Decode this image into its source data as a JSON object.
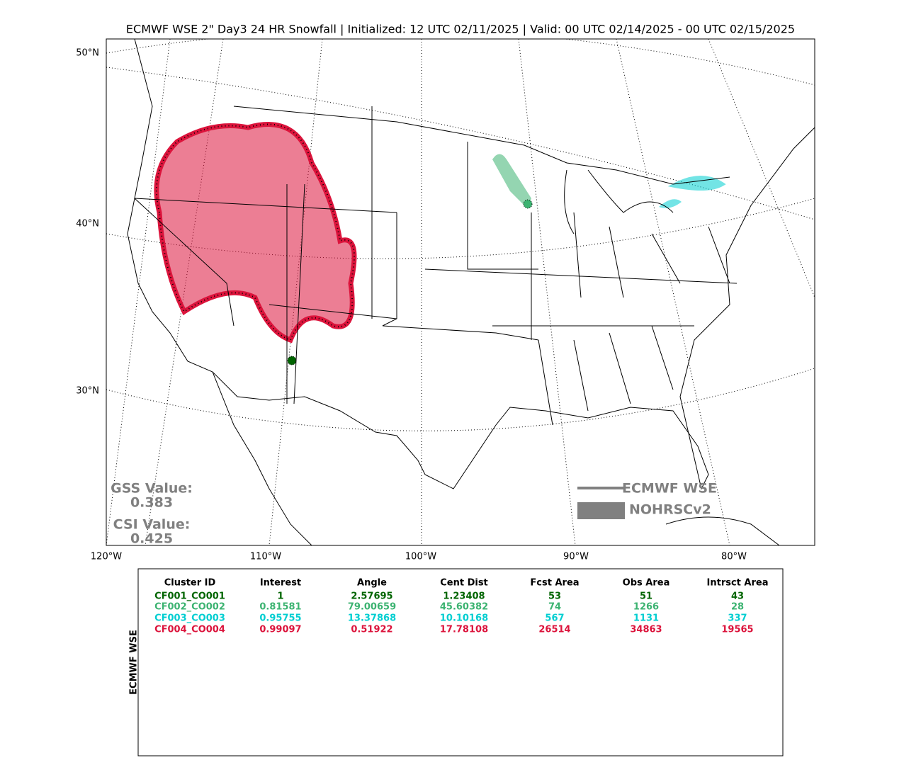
{
  "header": {
    "title": "ECMWF WSE 2\" Day3 24 HR Snowfall | Initialized: 12 UTC 02/11/2025 | Valid: 00 UTC 02/14/2025 - 00 UTC 02/15/2025"
  },
  "map": {
    "lat_labels": [
      "50°N",
      "40°N",
      "30°N"
    ],
    "lon_labels": [
      "120°W",
      "110°W",
      "100°W",
      "90°W",
      "80°W"
    ],
    "scores": {
      "gss_label": "GSS Value:",
      "gss_value": "0.383",
      "csi_label": "CSI Value:",
      "csi_value": "0.425"
    },
    "legend": {
      "forecast": "ECMWF WSE",
      "observed": "NOHRSCv2"
    }
  },
  "table": {
    "side_label": "ECMWF WSE",
    "columns": [
      "Cluster ID",
      "Interest",
      "Angle",
      "Cent Dist",
      "Fcst Area",
      "Obs Area",
      "Intrsct Area"
    ],
    "rows": [
      {
        "color": "#006400",
        "cells": [
          "CF001_CO001",
          "1",
          "2.57695",
          "1.23408",
          "53",
          "51",
          "43"
        ]
      },
      {
        "color": "#3cb371",
        "cells": [
          "CF002_CO002",
          "0.81581",
          "79.00659",
          "45.60382",
          "74",
          "1266",
          "28"
        ]
      },
      {
        "color": "#00ced1",
        "cells": [
          "CF003_CO003",
          "0.95755",
          "13.37868",
          "10.10168",
          "567",
          "1131",
          "337"
        ]
      },
      {
        "color": "#dc143c",
        "cells": [
          "CF004_CO004",
          "0.99097",
          "0.51922",
          "17.78108",
          "26514",
          "34863",
          "19565"
        ]
      }
    ]
  }
}
